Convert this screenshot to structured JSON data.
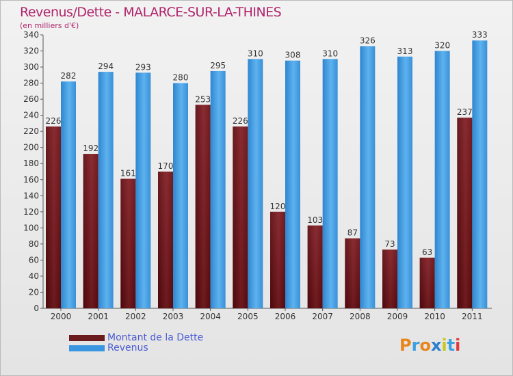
{
  "header": {
    "title": "Revenus/Dette - MALARCE-SUR-LA-THINES",
    "subtitle": "(en milliers d'€)"
  },
  "colors": {
    "title": "#b0246b",
    "dette": "#6b1a1e",
    "revenus": "#3a96e0",
    "legend_text": "#4a5bd4"
  },
  "chart_data": {
    "type": "bar",
    "title": "Revenus/Dette - MALARCE-SUR-LA-THINES",
    "ylabel": "(en milliers d'€)",
    "categories": [
      "2000",
      "2001",
      "2002",
      "2003",
      "2004",
      "2005",
      "2006",
      "2007",
      "2008",
      "2009",
      "2010",
      "2011"
    ],
    "series": [
      {
        "name": "Montant de la Dette",
        "values": [
          226,
          192,
          161,
          170,
          253,
          226,
          120,
          103,
          87,
          73,
          63,
          237
        ]
      },
      {
        "name": "Revenus",
        "values": [
          282,
          294,
          293,
          280,
          295,
          310,
          308,
          310,
          326,
          313,
          320,
          333
        ]
      }
    ],
    "ylim": [
      0,
      340
    ],
    "yticks": [
      0,
      20,
      40,
      60,
      80,
      100,
      120,
      140,
      160,
      180,
      200,
      220,
      240,
      260,
      280,
      300,
      320,
      340
    ],
    "grid": false,
    "legend_position": "bottom-left"
  },
  "legend": {
    "items": [
      {
        "label": "Montant de la Dette",
        "color": "#6b1a1e"
      },
      {
        "label": "Revenus",
        "color": "#3a96e0"
      }
    ]
  },
  "logo": {
    "letters": [
      "P",
      "r",
      "o",
      "x",
      "i",
      "t",
      "i"
    ],
    "colors": [
      "#e8861c",
      "#3aa0e0",
      "#e8861c",
      "#2a7fd0",
      "#c8c81c",
      "#3aa0e0",
      "#e23a3a"
    ]
  }
}
